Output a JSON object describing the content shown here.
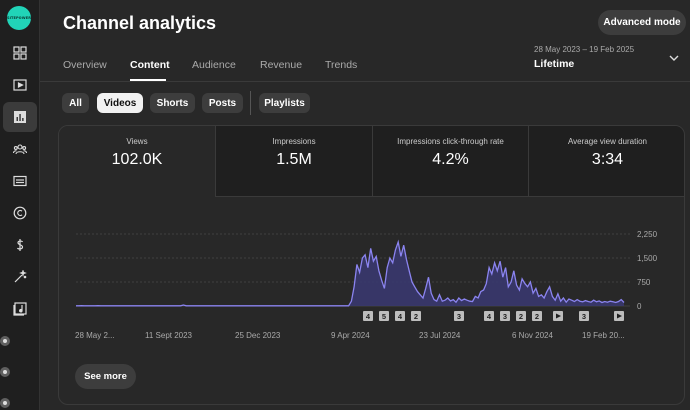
{
  "app": {
    "logo_text": "SITEPOWER",
    "title": "Channel analytics",
    "advanced_mode_label": "Advanced mode"
  },
  "rail": {
    "items": [
      {
        "icon": "dashboard-icon",
        "active": false
      },
      {
        "icon": "content-icon",
        "active": false
      },
      {
        "icon": "analytics-icon",
        "active": true
      },
      {
        "icon": "community-icon",
        "active": false
      },
      {
        "icon": "subtitles-icon",
        "active": false
      },
      {
        "icon": "copyright-icon",
        "active": false
      },
      {
        "icon": "earn-icon",
        "active": false
      },
      {
        "icon": "customization-icon",
        "active": false
      },
      {
        "icon": "audio-library-icon",
        "active": false
      }
    ]
  },
  "tabs": [
    {
      "label": "Overview",
      "active": false
    },
    {
      "label": "Content",
      "active": true
    },
    {
      "label": "Audience",
      "active": false
    },
    {
      "label": "Revenue",
      "active": false
    },
    {
      "label": "Trends",
      "active": false
    }
  ],
  "date": {
    "range": "28 May 2023 – 19 Feb 2025",
    "preset": "Lifetime"
  },
  "filters": [
    {
      "label": "All",
      "active": false
    },
    {
      "label": "Videos",
      "active": true
    },
    {
      "label": "Shorts",
      "active": false
    },
    {
      "label": "Posts",
      "active": false
    },
    {
      "label": "Playlists",
      "active": false
    }
  ],
  "metrics": [
    {
      "label": "Views",
      "value": "102.0K",
      "active": true
    },
    {
      "label": "Impressions",
      "value": "1.5M",
      "active": false
    },
    {
      "label": "Impressions click-through rate",
      "value": "4.2%",
      "active": false
    },
    {
      "label": "Average view duration",
      "value": "3:34",
      "active": false
    }
  ],
  "see_more_label": "See more",
  "colors": {
    "accent_line": "#8b84f0",
    "area_fill": "#3a3872",
    "background": "#282828",
    "logo": "#21d4b8"
  },
  "chart_data": {
    "type": "area",
    "series": [
      {
        "values": [
          5,
          5,
          10,
          5,
          5,
          5,
          5,
          5,
          10,
          5,
          5,
          5,
          5,
          5,
          5,
          5,
          5,
          5,
          5,
          5,
          5,
          5,
          5,
          5,
          5,
          5,
          5,
          5,
          5,
          5,
          5,
          5,
          5,
          5,
          5,
          5,
          5,
          5,
          5,
          30,
          5,
          5,
          5,
          5,
          5,
          5,
          5,
          5,
          5,
          5,
          5,
          5,
          5,
          5,
          5,
          5,
          5,
          5,
          5,
          5,
          5,
          5,
          5,
          5,
          5,
          5,
          5,
          5,
          5,
          5,
          5,
          5,
          5,
          5,
          5,
          5,
          5,
          5,
          5,
          5,
          5,
          5,
          5,
          5,
          5,
          5,
          5,
          5,
          5,
          5,
          5,
          5,
          5,
          5,
          5,
          5,
          5,
          5,
          5,
          5,
          150,
          600,
          1300,
          1050,
          1500,
          1600,
          1200,
          1800,
          1400,
          1550,
          1100,
          800,
          550,
          1200,
          1500,
          1350,
          1750,
          2000,
          1550,
          1900,
          1450,
          1100,
          750,
          600,
          450,
          350,
          250,
          550,
          900,
          400,
          200,
          150,
          350,
          150,
          180,
          250,
          160,
          200,
          120,
          250,
          170,
          220,
          180,
          150,
          140,
          300,
          250,
          450,
          500,
          700,
          1200,
          1000,
          1350,
          1100,
          1400,
          900,
          1200,
          600,
          750,
          1100,
          650,
          500,
          850,
          700,
          600,
          750,
          400,
          550,
          300,
          350,
          250,
          450,
          600,
          300,
          180,
          380,
          150,
          250,
          120,
          220,
          180,
          140,
          200,
          150,
          130,
          170,
          140,
          120,
          180,
          130,
          160,
          110,
          140,
          120,
          150,
          130,
          110,
          140,
          200,
          110
        ]
      }
    ],
    "x_tick_labels": [
      "28 May 2...",
      "11 Sept 2023",
      "25 Dec 2023",
      "9 Apr 2024",
      "23 Jul 2024",
      "6 Nov 2024",
      "19 Feb 20..."
    ],
    "y_tick_labels": [
      "2,250",
      "1,500",
      "750",
      "0"
    ],
    "ylim": [
      0,
      2250
    ],
    "grid": true,
    "annotations": [
      {
        "label": "4",
        "kind": "count"
      },
      {
        "label": "5",
        "kind": "count"
      },
      {
        "label": "4",
        "kind": "count"
      },
      {
        "label": "2",
        "kind": "count"
      },
      {
        "label": "3",
        "kind": "count"
      },
      {
        "label": "4",
        "kind": "count"
      },
      {
        "label": "3",
        "kind": "count"
      },
      {
        "label": "2",
        "kind": "count"
      },
      {
        "label": "2",
        "kind": "count"
      },
      {
        "label": "",
        "kind": "play"
      },
      {
        "label": "3",
        "kind": "count"
      },
      {
        "label": "",
        "kind": "play"
      }
    ]
  }
}
